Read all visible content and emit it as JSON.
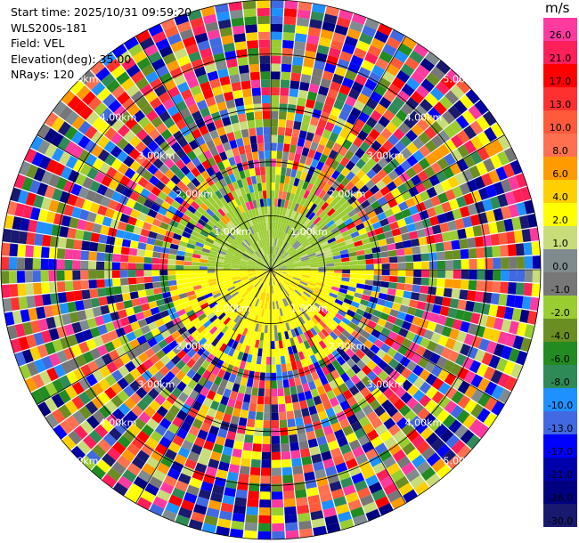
{
  "header": {
    "start_time": "Start time: 2025/10/31 09:59:20",
    "station": "WLS200s-181",
    "field": "Field: VEL",
    "elevation": "Elevation(deg): 35.00",
    "nrays": "NRays: 120"
  },
  "colorbar": {
    "unit": "m/s",
    "labels": [
      "26.0",
      "21.0",
      "17.0",
      "13.0",
      "10.0",
      "8.0",
      "6.0",
      "4.0",
      "2.0",
      "1.0",
      "0.0",
      "-1.0",
      "-2.0",
      "-4.0",
      "-6.0",
      "-8.0",
      "-10.0",
      "-13.0",
      "-17.0",
      "-21.0",
      "-26.0",
      "-30.0"
    ],
    "colors": [
      "#ff3a9e",
      "#ff1f5a",
      "#ff0000",
      "#ff3030",
      "#ff5a3a",
      "#ff7050",
      "#ff9a00",
      "#ffd000",
      "#ffff00",
      "#c8dc7a",
      "#7f8b8f",
      "#777777",
      "#9acd32",
      "#6b8e23",
      "#228b22",
      "#2e8b57",
      "#1e90ff",
      "#4169e1",
      "#0000ff",
      "#0000aa",
      "#000080",
      "#191970"
    ]
  },
  "chart_data": {
    "type": "heatmap",
    "projection": "polar PPI",
    "field": "VEL",
    "units": "m/s",
    "elevation_deg": 35.0,
    "n_rays": 120,
    "range_rings_km": [
      "1.00km",
      "2.00km",
      "3.00km",
      "4.00km",
      "5.00km"
    ],
    "max_range_km": 5.0,
    "value_range": [
      -30.0,
      26.0
    ],
    "pattern": "inner ~1.3 km: north half near -1 to -2 m/s (yellow-green), south half near +2 m/s (yellow); beyond ~2 km noisy values spanning the full scale"
  }
}
